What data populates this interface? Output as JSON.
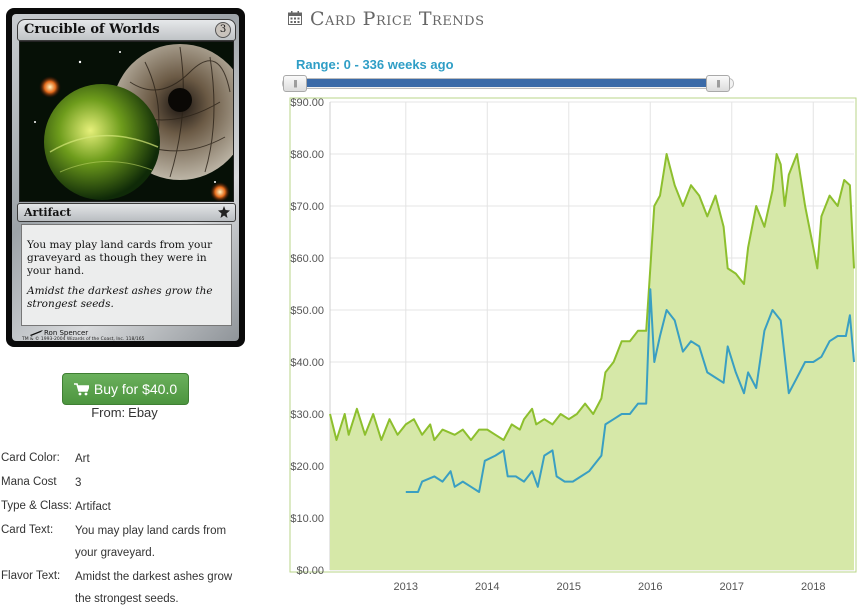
{
  "card": {
    "name": "Crucible of Worlds",
    "mana": "3",
    "type": "Artifact",
    "rules_text": "You may play land cards from your graveyard as though they were in your hand.",
    "flavor_text": "Amidst the darkest ashes grow the strongest seeds.",
    "artist": "Ron Spencer",
    "copyright": "TM & © 1993-2004 Wizards of the Coast, Inc. 118/165",
    "art_icon": "card-artwork",
    "set_icon": "fifth-dawn-set-icon"
  },
  "buy": {
    "icon": "cart-icon",
    "label": "Buy for $40.0",
    "source_label": "From:",
    "source": "Ebay",
    "color": "#5ca44e"
  },
  "details": [
    {
      "label": "Card Color:",
      "value": "Art"
    },
    {
      "label": "Mana Cost",
      "value": "3"
    },
    {
      "label": "Type & Class:",
      "value": "Artifact"
    },
    {
      "label": "Card Text:",
      "value": "You may play land cards from your graveyard."
    },
    {
      "label": "Flavor Text:",
      "value": "Amidst the darkest ashes grow the strongest seeds."
    }
  ],
  "trends": {
    "icon": "calendar-icon",
    "title": "Card Price Trends",
    "range_label": "Range: 0 - 336 weeks ago",
    "range_value": [
      0,
      336
    ],
    "range_color": "#3a6aa8",
    "handle_left_glyph": "|||",
    "handle_right_glyph": "|||"
  },
  "chart_data": {
    "type": "area",
    "title": "",
    "xlabel": "",
    "ylabel": "",
    "x_ticks": [
      "2013",
      "2014",
      "2015",
      "2016",
      "2017",
      "2018"
    ],
    "x_tick_values": [
      2013,
      2014,
      2015,
      2016,
      2017,
      2018
    ],
    "xlim": [
      2012.07,
      2018.5
    ],
    "y_ticks": [
      "$0.00",
      "$10.00",
      "$20.00",
      "$30.00",
      "$40.00",
      "$50.00",
      "$60.00",
      "$70.00",
      "$80.00",
      "$90.00"
    ],
    "ylim": [
      0,
      90
    ],
    "grid": true,
    "series": [
      {
        "color": "#8dbf2e",
        "fill": "#d6e8a8",
        "points": [
          [
            2012.07,
            30
          ],
          [
            2012.15,
            25
          ],
          [
            2012.25,
            30
          ],
          [
            2012.3,
            26
          ],
          [
            2012.4,
            31
          ],
          [
            2012.5,
            26
          ],
          [
            2012.6,
            30
          ],
          [
            2012.7,
            25
          ],
          [
            2012.8,
            29
          ],
          [
            2012.9,
            26
          ],
          [
            2013.0,
            28
          ],
          [
            2013.1,
            29
          ],
          [
            2013.2,
            26
          ],
          [
            2013.3,
            28
          ],
          [
            2013.35,
            25
          ],
          [
            2013.45,
            27
          ],
          [
            2013.6,
            26
          ],
          [
            2013.7,
            27
          ],
          [
            2013.8,
            25
          ],
          [
            2013.9,
            27
          ],
          [
            2014.0,
            27
          ],
          [
            2014.1,
            26
          ],
          [
            2014.2,
            25
          ],
          [
            2014.3,
            28
          ],
          [
            2014.4,
            27
          ],
          [
            2014.45,
            29
          ],
          [
            2014.55,
            31
          ],
          [
            2014.6,
            28
          ],
          [
            2014.7,
            29
          ],
          [
            2014.8,
            28
          ],
          [
            2014.9,
            30
          ],
          [
            2015.0,
            29
          ],
          [
            2015.1,
            30
          ],
          [
            2015.2,
            32
          ],
          [
            2015.3,
            30
          ],
          [
            2015.4,
            33
          ],
          [
            2015.45,
            38
          ],
          [
            2015.55,
            40
          ],
          [
            2015.65,
            44
          ],
          [
            2015.75,
            44
          ],
          [
            2015.85,
            46
          ],
          [
            2015.95,
            46
          ],
          [
            2016.0,
            58
          ],
          [
            2016.05,
            70
          ],
          [
            2016.12,
            72
          ],
          [
            2016.2,
            80
          ],
          [
            2016.3,
            74
          ],
          [
            2016.4,
            70
          ],
          [
            2016.5,
            74
          ],
          [
            2016.6,
            72
          ],
          [
            2016.7,
            68
          ],
          [
            2016.8,
            72
          ],
          [
            2016.9,
            66
          ],
          [
            2016.95,
            58
          ],
          [
            2017.05,
            57
          ],
          [
            2017.15,
            55
          ],
          [
            2017.2,
            62
          ],
          [
            2017.3,
            70
          ],
          [
            2017.4,
            66
          ],
          [
            2017.5,
            73
          ],
          [
            2017.55,
            80
          ],
          [
            2017.6,
            78
          ],
          [
            2017.65,
            70
          ],
          [
            2017.7,
            76
          ],
          [
            2017.8,
            80
          ],
          [
            2017.9,
            70
          ],
          [
            2018.0,
            62
          ],
          [
            2018.05,
            58
          ],
          [
            2018.1,
            68
          ],
          [
            2018.2,
            72
          ],
          [
            2018.3,
            70
          ],
          [
            2018.38,
            75
          ],
          [
            2018.45,
            74
          ],
          [
            2018.5,
            58
          ]
        ]
      },
      {
        "color": "#3a9fc2",
        "points": [
          [
            2013.0,
            15
          ],
          [
            2013.15,
            15
          ],
          [
            2013.2,
            17
          ],
          [
            2013.35,
            18
          ],
          [
            2013.45,
            17
          ],
          [
            2013.55,
            19
          ],
          [
            2013.6,
            16
          ],
          [
            2013.7,
            17
          ],
          [
            2013.8,
            16
          ],
          [
            2013.9,
            15
          ],
          [
            2013.97,
            21
          ],
          [
            2014.1,
            22
          ],
          [
            2014.2,
            23
          ],
          [
            2014.25,
            18
          ],
          [
            2014.35,
            18
          ],
          [
            2014.45,
            17
          ],
          [
            2014.55,
            19
          ],
          [
            2014.62,
            16
          ],
          [
            2014.7,
            22
          ],
          [
            2014.8,
            23
          ],
          [
            2014.85,
            18
          ],
          [
            2014.95,
            17
          ],
          [
            2015.05,
            17
          ],
          [
            2015.15,
            18
          ],
          [
            2015.25,
            19
          ],
          [
            2015.3,
            20
          ],
          [
            2015.4,
            22
          ],
          [
            2015.45,
            28
          ],
          [
            2015.55,
            29
          ],
          [
            2015.65,
            30
          ],
          [
            2015.75,
            30
          ],
          [
            2015.85,
            32
          ],
          [
            2015.95,
            32
          ],
          [
            2016.0,
            54
          ],
          [
            2016.05,
            40
          ],
          [
            2016.12,
            45
          ],
          [
            2016.2,
            50
          ],
          [
            2016.3,
            48
          ],
          [
            2016.4,
            42
          ],
          [
            2016.5,
            44
          ],
          [
            2016.6,
            43
          ],
          [
            2016.7,
            38
          ],
          [
            2016.8,
            37
          ],
          [
            2016.9,
            36
          ],
          [
            2016.95,
            43
          ],
          [
            2017.05,
            38
          ],
          [
            2017.15,
            34
          ],
          [
            2017.2,
            38
          ],
          [
            2017.3,
            35
          ],
          [
            2017.4,
            46
          ],
          [
            2017.5,
            50
          ],
          [
            2017.6,
            48
          ],
          [
            2017.7,
            34
          ],
          [
            2017.8,
            37
          ],
          [
            2017.9,
            40
          ],
          [
            2018.0,
            40
          ],
          [
            2018.1,
            41
          ],
          [
            2018.2,
            44
          ],
          [
            2018.3,
            45
          ],
          [
            2018.4,
            45
          ],
          [
            2018.45,
            49
          ],
          [
            2018.5,
            40
          ]
        ]
      }
    ]
  }
}
